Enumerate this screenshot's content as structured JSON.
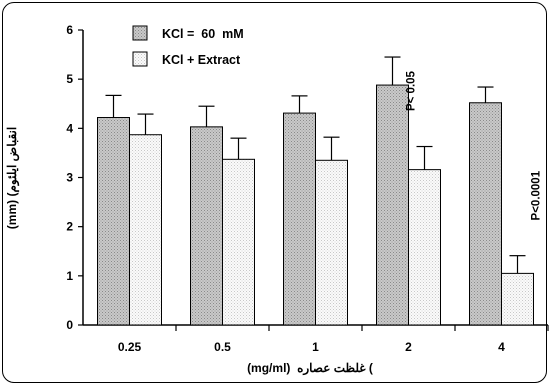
{
  "chart_data": {
    "type": "bar",
    "categories": [
      "0.25",
      "0.5",
      "1",
      "2",
      "4"
    ],
    "series": [
      {
        "name": "KCl =  60  mM",
        "values": [
          4.22,
          4.03,
          4.31,
          4.88,
          4.52
        ],
        "errors": [
          0.45,
          0.42,
          0.35,
          0.57,
          0.32
        ],
        "fill": "#c0c0c0"
      },
      {
        "name": "KCl + Extract",
        "values": [
          3.87,
          3.37,
          3.35,
          3.16,
          1.05
        ],
        "errors": [
          0.42,
          0.43,
          0.47,
          0.47,
          0.36
        ],
        "fill": "#f2f2f2"
      }
    ],
    "ylim": [
      0,
      6
    ],
    "yticks": [
      "0",
      "1",
      "2",
      "3",
      "4",
      "5",
      "6"
    ],
    "xlabel": "(mg/ml)  غلظت عصاره (",
    "ylabel": "(mm) (انقباض ايلئوم",
    "legend_position": "top-left",
    "annotations": [
      {
        "text": "P< 0.05",
        "category": "2",
        "series": 0
      },
      {
        "text": "P<0.0001",
        "category": "4",
        "series": 1
      }
    ]
  }
}
